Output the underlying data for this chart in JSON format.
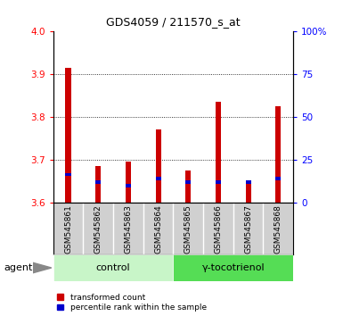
{
  "title": "GDS4059 / 211570_s_at",
  "samples": [
    "GSM545861",
    "GSM545862",
    "GSM545863",
    "GSM545864",
    "GSM545865",
    "GSM545866",
    "GSM545867",
    "GSM545868"
  ],
  "red_values": [
    3.915,
    3.685,
    3.695,
    3.77,
    3.675,
    3.835,
    3.645,
    3.825
  ],
  "blue_values": [
    3.665,
    3.648,
    3.638,
    3.655,
    3.648,
    3.648,
    3.648,
    3.655
  ],
  "ylim": [
    3.6,
    4.0
  ],
  "yticks_left": [
    3.6,
    3.7,
    3.8,
    3.9,
    4.0
  ],
  "yticks_right": [
    0,
    25,
    50,
    75,
    100
  ],
  "bar_width": 0.18,
  "red_color": "#cc0000",
  "blue_color": "#0000cc",
  "bar_base": 3.6,
  "control_label": "control",
  "treatment_label": "γ-tocotrienol",
  "agent_label": "agent",
  "legend_red": "transformed count",
  "legend_blue": "percentile rank within the sample",
  "light_green": "#c8f5c8",
  "bright_green": "#55dd55",
  "gray_bg": "#d0d0d0",
  "white_bg": "#ffffff"
}
